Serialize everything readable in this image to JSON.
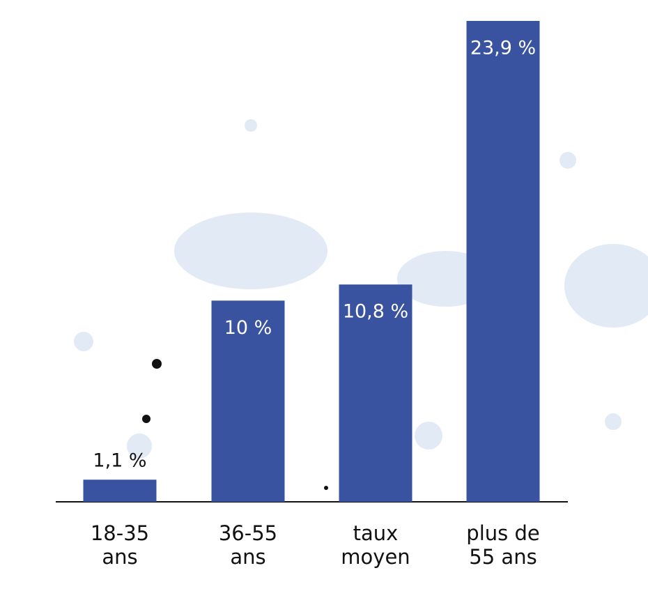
{
  "chart_data": {
    "type": "bar",
    "categories": [
      "18-35 ans",
      "36-55 ans",
      "taux moyen",
      "plus de 55 ans"
    ],
    "values": [
      1.1,
      10,
      10.8,
      23.9
    ],
    "value_labels": [
      "1,1 %",
      "10 %",
      "10,8 %",
      "23,9 %"
    ],
    "color": "#3a53a0"
  }
}
